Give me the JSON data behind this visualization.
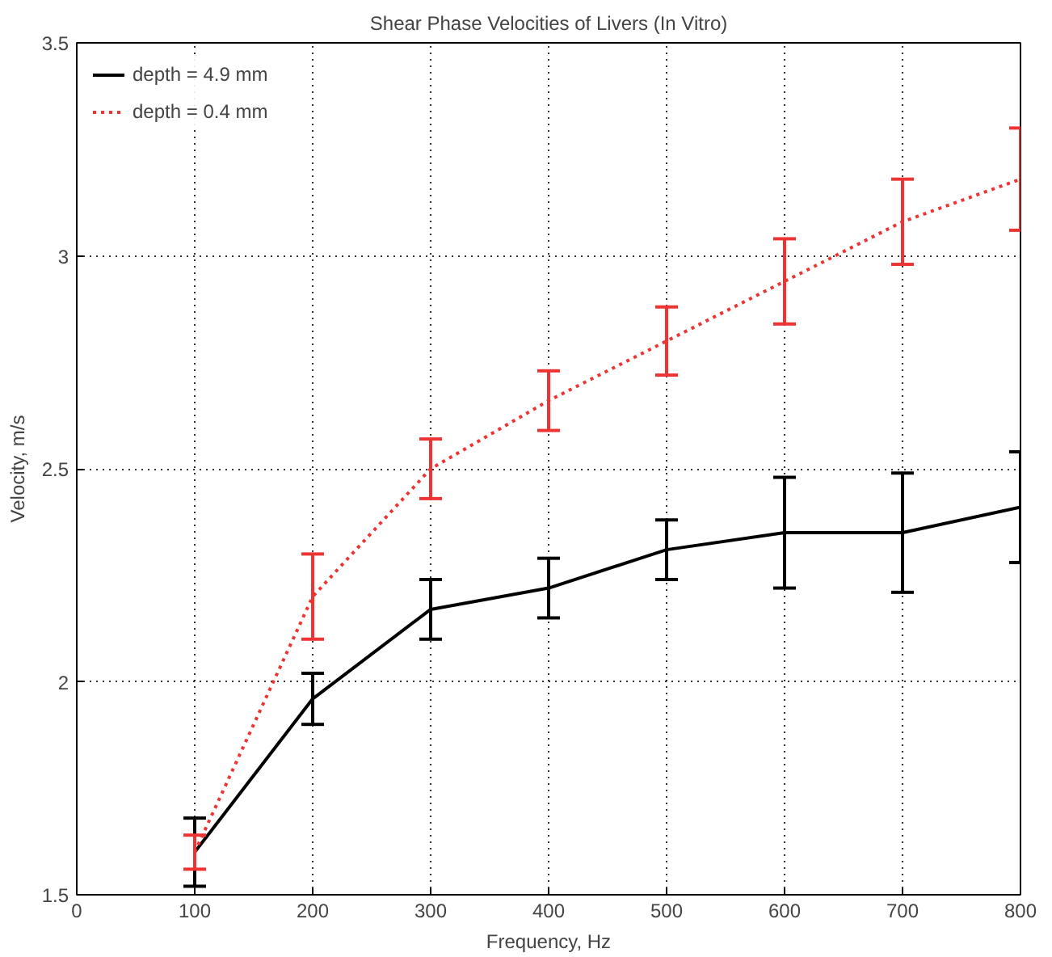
{
  "chart_data": {
    "type": "line",
    "title": "Shear Phase Velocities of Livers (In Vitro)",
    "xlabel": "Frequency, Hz",
    "ylabel": "Velocity, m/s",
    "x": [
      100,
      200,
      300,
      400,
      500,
      600,
      700,
      800
    ],
    "series": [
      {
        "name": "depth = 4.9 mm",
        "color": "#000000",
        "line_style": "solid",
        "values": [
          1.6,
          1.96,
          2.17,
          2.22,
          2.31,
          2.35,
          2.35,
          2.41
        ],
        "errors": [
          0.08,
          0.06,
          0.07,
          0.07,
          0.07,
          0.13,
          0.14,
          0.13
        ]
      },
      {
        "name": "depth = 0.4 mm",
        "color": "#ee3333",
        "line_style": "dotted",
        "values": [
          1.6,
          2.2,
          2.5,
          2.66,
          2.8,
          2.94,
          3.08,
          3.18
        ],
        "errors": [
          0.04,
          0.1,
          0.07,
          0.07,
          0.08,
          0.1,
          0.1,
          0.12
        ]
      }
    ],
    "xlim": [
      0,
      800
    ],
    "ylim": [
      1.5,
      3.5
    ],
    "xticks": [
      0,
      100,
      200,
      300,
      400,
      500,
      600,
      700,
      800
    ],
    "yticks": [
      1.5,
      2,
      2.5,
      3,
      3.5
    ],
    "grid": true,
    "legend": "top left",
    "marker": "none"
  }
}
